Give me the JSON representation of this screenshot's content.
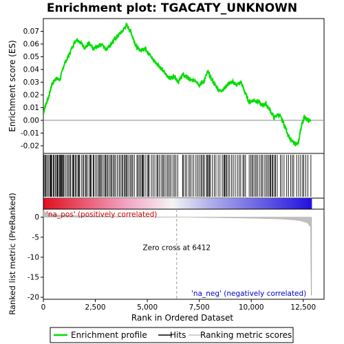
{
  "chart_data": {
    "type": "line",
    "title": "Enrichment plot: TGACATY_UNKNOWN",
    "xlabel": "Rank in Ordered Dataset",
    "xlim": [
      0,
      13500
    ],
    "x_ticks": [
      0,
      2500,
      5000,
      7500,
      10000,
      12500
    ],
    "x_tick_labels": [
      "0",
      "2,500",
      "5,000",
      "7,500",
      "10,000",
      "12,500"
    ],
    "es_panel": {
      "ylabel": "Enrichment score (ES)",
      "ylim": [
        -0.026,
        0.08
      ],
      "y_ticks": [
        -0.02,
        -0.01,
        0.0,
        0.01,
        0.02,
        0.03,
        0.04,
        0.05,
        0.06,
        0.07
      ],
      "y_tick_labels": [
        "-0.02",
        "-0.01",
        "0.00",
        "0.01",
        "0.02",
        "0.03",
        "0.04",
        "0.05",
        "0.06",
        "0.07"
      ],
      "series": [
        {
          "name": "Enrichment profile",
          "color": "#00dd00",
          "x": [
            0,
            100,
            250,
            400,
            600,
            800,
            1000,
            1200,
            1400,
            1600,
            1800,
            2000,
            2200,
            2400,
            2600,
            2800,
            3000,
            3200,
            3400,
            3600,
            3800,
            4000,
            4200,
            4350,
            4500,
            4700,
            4900,
            5100,
            5300,
            5500,
            5700,
            5900,
            6100,
            6300,
            6500,
            6700,
            6900,
            7100,
            7300,
            7500,
            7700,
            7900,
            8100,
            8300,
            8500,
            8700,
            8900,
            9100,
            9300,
            9500,
            9700,
            9900,
            10100,
            10300,
            10500,
            10700,
            10900,
            11100,
            11300,
            11500,
            11700,
            11900,
            12100,
            12250,
            12400,
            12550,
            12700,
            12850
          ],
          "y": [
            0.005,
            0.012,
            0.018,
            0.028,
            0.033,
            0.032,
            0.044,
            0.05,
            0.058,
            0.064,
            0.061,
            0.057,
            0.06,
            0.056,
            0.058,
            0.06,
            0.056,
            0.059,
            0.063,
            0.067,
            0.07,
            0.075,
            0.07,
            0.063,
            0.057,
            0.055,
            0.057,
            0.052,
            0.047,
            0.044,
            0.04,
            0.036,
            0.033,
            0.035,
            0.03,
            0.036,
            0.034,
            0.031,
            0.032,
            0.028,
            0.03,
            0.038,
            0.032,
            0.027,
            0.023,
            0.025,
            0.029,
            0.03,
            0.028,
            0.03,
            0.022,
            0.014,
            0.016,
            0.015,
            0.012,
            0.013,
            0.008,
            0.002,
            0.005,
            0.0,
            -0.008,
            -0.016,
            -0.018,
            -0.019,
            -0.005,
            0.003,
            0.0,
            0.0
          ]
        }
      ]
    },
    "hits_panel": {
      "hit_density": [
        {
          "from": 0,
          "to": 4400,
          "step": 58
        },
        {
          "from": 4500,
          "to": 6500,
          "step": 70
        },
        {
          "from": 6700,
          "to": 9800,
          "step": 75
        },
        {
          "from": 9900,
          "to": 11200,
          "step": 62
        },
        {
          "from": 11250,
          "to": 12900,
          "step": 110
        }
      ]
    },
    "metric_panel": {
      "ylabel": "Ranked list metric (PreRanked)",
      "ylim": [
        -20.5,
        2.0
      ],
      "y_ticks": [
        0,
        -5,
        -10,
        -15,
        -20
      ],
      "y_tick_labels": [
        "0",
        "-5",
        "-10",
        "-15",
        "-20"
      ],
      "profile": [
        {
          "x": 0,
          "y": 1.6
        },
        {
          "x": 150,
          "y": 1.0
        },
        {
          "x": 500,
          "y": 0.6
        },
        {
          "x": 1500,
          "y": 0.35
        },
        {
          "x": 3000,
          "y": 0.2
        },
        {
          "x": 5000,
          "y": 0.08
        },
        {
          "x": 6412,
          "y": 0.0
        },
        {
          "x": 8000,
          "y": -0.1
        },
        {
          "x": 10000,
          "y": -0.25
        },
        {
          "x": 11500,
          "y": -0.45
        },
        {
          "x": 12300,
          "y": -0.8
        },
        {
          "x": 12700,
          "y": -1.4
        },
        {
          "x": 12850,
          "y": -2.5
        },
        {
          "x": 12880,
          "y": -19.5
        },
        {
          "x": 12900,
          "y": -19.5
        }
      ],
      "zero_cross_x": 6412,
      "zero_cross_label": "Zero cross at 6412",
      "pos_label": "'na_pos' (positively correlated)",
      "neg_label": "'na_neg' (negatively correlated)"
    },
    "colors": {
      "es_line": "#00dd00",
      "hits": "#000000",
      "metric_fill": "#c0c0c0",
      "pos_label": "#cc0000",
      "neg_label": "#0000cc",
      "zero_line": "#999999",
      "gradient_left": "#e01020",
      "gradient_mid": "#f4f4f4",
      "gradient_right": "#2010e0"
    },
    "legend": {
      "placement": "bottom",
      "items": [
        {
          "label": "Enrichment profile",
          "color": "#00dd00",
          "kind": "line"
        },
        {
          "label": "Hits",
          "color": "#000000",
          "kind": "line"
        },
        {
          "label": "Ranking metric scores",
          "color": "#c0c0c0",
          "kind": "line"
        }
      ]
    }
  }
}
